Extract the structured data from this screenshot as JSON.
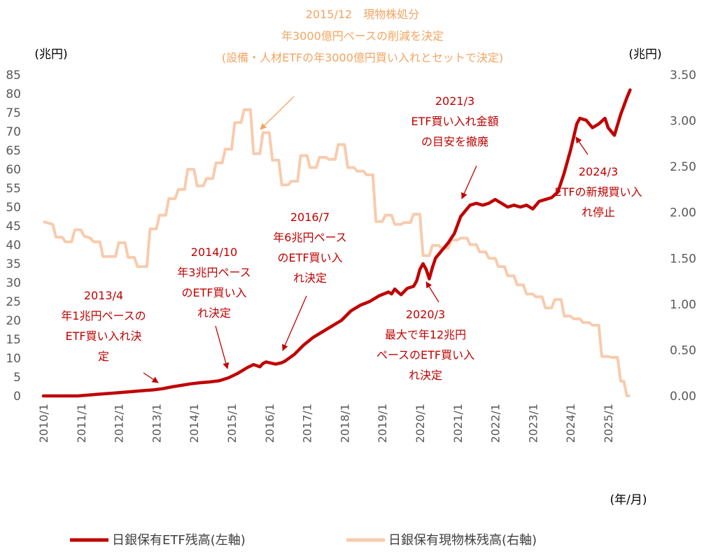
{
  "chart_data": {
    "type": "line",
    "title": "",
    "left_unit": "(兆円)",
    "right_unit": "(兆円)",
    "x_unit": "(年/月)",
    "x_ticks": [
      "2010/1",
      "2011/1",
      "2012/1",
      "2013/1",
      "2014/1",
      "2015/1",
      "2016/1",
      "2017/1",
      "2018/1",
      "2019/1",
      "2020/1",
      "2021/1",
      "2022/1",
      "2023/1",
      "2024/1",
      "2025/1"
    ],
    "y_left_ticks": [
      "0",
      "5",
      "10",
      "15",
      "20",
      "25",
      "30",
      "35",
      "40",
      "45",
      "50",
      "55",
      "60",
      "65",
      "70",
      "75",
      "80",
      "85"
    ],
    "y_right_ticks": [
      "0.00",
      "0.50",
      "1.00",
      "1.50",
      "2.00",
      "2.50",
      "3.00",
      "3.50"
    ],
    "ylim_left": [
      0,
      85
    ],
    "ylim_right": [
      0,
      3.5
    ],
    "grid": false,
    "legend_position": "bottom",
    "colors": {
      "etf": "#C00000",
      "stock": "#F8CBAD",
      "annotation_top": "#F4A460",
      "annotation": "#C00000"
    },
    "series": [
      {
        "name": "日銀保有ETF残高(左軸)",
        "axis": "left",
        "points": [
          [
            "2010-01",
            0
          ],
          [
            "2010-12",
            0
          ],
          [
            "2011-03",
            0.2
          ],
          [
            "2011-06",
            0.4
          ],
          [
            "2011-09",
            0.6
          ],
          [
            "2011-12",
            0.8
          ],
          [
            "2012-03",
            1.0
          ],
          [
            "2012-06",
            1.2
          ],
          [
            "2012-09",
            1.4
          ],
          [
            "2012-12",
            1.6
          ],
          [
            "2013-03",
            1.9
          ],
          [
            "2013-06",
            2.4
          ],
          [
            "2013-09",
            2.8
          ],
          [
            "2013-12",
            3.2
          ],
          [
            "2014-03",
            3.5
          ],
          [
            "2014-06",
            3.7
          ],
          [
            "2014-09",
            4.0
          ],
          [
            "2014-12",
            4.8
          ],
          [
            "2015-03",
            6.0
          ],
          [
            "2015-06",
            7.5
          ],
          [
            "2015-08",
            8.3
          ],
          [
            "2015-09",
            8.0
          ],
          [
            "2015-10",
            7.7
          ],
          [
            "2015-11",
            8.6
          ],
          [
            "2015-12",
            9.0
          ],
          [
            "2016-01",
            8.8
          ],
          [
            "2016-03",
            8.4
          ],
          [
            "2016-05",
            8.8
          ],
          [
            "2016-06",
            9.2
          ],
          [
            "2016-07",
            9.8
          ],
          [
            "2016-09",
            11.0
          ],
          [
            "2016-12",
            13.5
          ],
          [
            "2017-03",
            15.5
          ],
          [
            "2017-06",
            17.0
          ],
          [
            "2017-09",
            18.5
          ],
          [
            "2017-12",
            20.0
          ],
          [
            "2018-03",
            22.5
          ],
          [
            "2018-06",
            24.0
          ],
          [
            "2018-09",
            25.0
          ],
          [
            "2018-12",
            26.5
          ],
          [
            "2019-03",
            27.5
          ],
          [
            "2019-04",
            27.0
          ],
          [
            "2019-05",
            28.3
          ],
          [
            "2019-06",
            27.5
          ],
          [
            "2019-07",
            26.8
          ],
          [
            "2019-09",
            28.5
          ],
          [
            "2019-11",
            29.0
          ],
          [
            "2019-12",
            30.5
          ],
          [
            "2020-01",
            33.5
          ],
          [
            "2020-02",
            35.0
          ],
          [
            "2020-03",
            33.5
          ],
          [
            "2020-04",
            31.0
          ],
          [
            "2020-05",
            34.0
          ],
          [
            "2020-06",
            36.5
          ],
          [
            "2020-08",
            38.5
          ],
          [
            "2020-10",
            40.5
          ],
          [
            "2020-12",
            43.0
          ],
          [
            "2021-02",
            47.5
          ],
          [
            "2021-03",
            48.5
          ],
          [
            "2021-05",
            50.5
          ],
          [
            "2021-07",
            51.0
          ],
          [
            "2021-09",
            50.5
          ],
          [
            "2021-11",
            51.0
          ],
          [
            "2022-01",
            52.0
          ],
          [
            "2022-03",
            51.0
          ],
          [
            "2022-05",
            50.0
          ],
          [
            "2022-07",
            50.5
          ],
          [
            "2022-09",
            50.0
          ],
          [
            "2022-11",
            50.5
          ],
          [
            "2023-01",
            49.5
          ],
          [
            "2023-03",
            51.5
          ],
          [
            "2023-05",
            52.0
          ],
          [
            "2023-07",
            52.5
          ],
          [
            "2023-09",
            54.0
          ],
          [
            "2023-11",
            59.0
          ],
          [
            "2024-01",
            65.0
          ],
          [
            "2024-03",
            72.0
          ],
          [
            "2024-04",
            73.5
          ],
          [
            "2024-06",
            73.0
          ],
          [
            "2024-08",
            71.0
          ],
          [
            "2024-10",
            72.0
          ],
          [
            "2024-12",
            73.5
          ],
          [
            "2025-01",
            71.0
          ],
          [
            "2025-02",
            70.0
          ],
          [
            "2025-03",
            69.0
          ],
          [
            "2025-05",
            74.5
          ],
          [
            "2025-07",
            79.0
          ],
          [
            "2025-08",
            81.0
          ]
        ]
      },
      {
        "name": "日銀保有現物株残高(右軸)",
        "axis": "right",
        "points": [
          [
            "2010-01",
            1.9
          ],
          [
            "2010-04",
            1.87
          ],
          [
            "2010-05",
            1.73
          ],
          [
            "2010-07",
            1.73
          ],
          [
            "2010-08",
            1.68
          ],
          [
            "2010-10",
            1.68
          ],
          [
            "2010-11",
            1.81
          ],
          [
            "2011-01",
            1.81
          ],
          [
            "2011-02",
            1.74
          ],
          [
            "2011-04",
            1.72
          ],
          [
            "2011-05",
            1.68
          ],
          [
            "2011-07",
            1.68
          ],
          [
            "2011-08",
            1.52
          ],
          [
            "2011-12",
            1.52
          ],
          [
            "2012-01",
            1.67
          ],
          [
            "2012-03",
            1.67
          ],
          [
            "2012-04",
            1.51
          ],
          [
            "2012-06",
            1.51
          ],
          [
            "2012-07",
            1.41
          ],
          [
            "2012-10",
            1.41
          ],
          [
            "2012-11",
            1.82
          ],
          [
            "2013-01",
            1.82
          ],
          [
            "2013-02",
            1.97
          ],
          [
            "2013-04",
            1.97
          ],
          [
            "2013-05",
            2.15
          ],
          [
            "2013-07",
            2.15
          ],
          [
            "2013-08",
            2.25
          ],
          [
            "2013-10",
            2.25
          ],
          [
            "2013-11",
            2.47
          ],
          [
            "2014-01",
            2.47
          ],
          [
            "2014-02",
            2.29
          ],
          [
            "2014-04",
            2.29
          ],
          [
            "2014-05",
            2.37
          ],
          [
            "2014-07",
            2.37
          ],
          [
            "2014-08",
            2.54
          ],
          [
            "2014-10",
            2.54
          ],
          [
            "2014-11",
            2.69
          ],
          [
            "2015-01",
            2.69
          ],
          [
            "2015-02",
            2.98
          ],
          [
            "2015-04",
            2.98
          ],
          [
            "2015-05",
            3.12
          ],
          [
            "2015-07",
            3.12
          ],
          [
            "2015-08",
            2.64
          ],
          [
            "2015-10",
            2.64
          ],
          [
            "2015-11",
            2.87
          ],
          [
            "2016-01",
            2.87
          ],
          [
            "2016-02",
            2.57
          ],
          [
            "2016-04",
            2.57
          ],
          [
            "2016-05",
            2.3
          ],
          [
            "2016-07",
            2.3
          ],
          [
            "2016-08",
            2.34
          ],
          [
            "2016-10",
            2.34
          ],
          [
            "2016-11",
            2.62
          ],
          [
            "2017-01",
            2.62
          ],
          [
            "2017-02",
            2.49
          ],
          [
            "2017-04",
            2.49
          ],
          [
            "2017-05",
            2.6
          ],
          [
            "2017-07",
            2.6
          ],
          [
            "2017-08",
            2.58
          ],
          [
            "2017-10",
            2.58
          ],
          [
            "2017-11",
            2.74
          ],
          [
            "2018-01",
            2.74
          ],
          [
            "2018-02",
            2.49
          ],
          [
            "2018-04",
            2.49
          ],
          [
            "2018-05",
            2.45
          ],
          [
            "2018-07",
            2.45
          ],
          [
            "2018-08",
            2.41
          ],
          [
            "2018-10",
            2.41
          ],
          [
            "2018-11",
            1.9
          ],
          [
            "2019-01",
            1.9
          ],
          [
            "2019-02",
            1.97
          ],
          [
            "2019-04",
            1.97
          ],
          [
            "2019-05",
            1.87
          ],
          [
            "2019-07",
            1.87
          ],
          [
            "2019-08",
            1.89
          ],
          [
            "2019-10",
            1.89
          ],
          [
            "2019-11",
            1.98
          ],
          [
            "2020-01",
            1.98
          ],
          [
            "2020-02",
            1.53
          ],
          [
            "2020-04",
            1.53
          ],
          [
            "2020-05",
            1.64
          ],
          [
            "2020-07",
            1.64
          ],
          [
            "2020-08",
            1.61
          ],
          [
            "2020-10",
            1.61
          ],
          [
            "2020-11",
            1.7
          ],
          [
            "2021-01",
            1.7
          ],
          [
            "2021-02",
            1.72
          ],
          [
            "2021-04",
            1.72
          ],
          [
            "2021-05",
            1.65
          ],
          [
            "2021-07",
            1.65
          ],
          [
            "2021-08",
            1.57
          ],
          [
            "2021-10",
            1.57
          ],
          [
            "2021-11",
            1.5
          ],
          [
            "2022-01",
            1.5
          ],
          [
            "2022-02",
            1.41
          ],
          [
            "2022-04",
            1.41
          ],
          [
            "2022-05",
            1.31
          ],
          [
            "2022-07",
            1.31
          ],
          [
            "2022-08",
            1.21
          ],
          [
            "2022-10",
            1.21
          ],
          [
            "2022-11",
            1.11
          ],
          [
            "2023-01",
            1.11
          ],
          [
            "2023-02",
            1.08
          ],
          [
            "2023-04",
            1.08
          ],
          [
            "2023-05",
            0.96
          ],
          [
            "2023-07",
            0.96
          ],
          [
            "2023-08",
            1.05
          ],
          [
            "2023-10",
            1.05
          ],
          [
            "2023-11",
            0.87
          ],
          [
            "2024-01",
            0.87
          ],
          [
            "2024-02",
            0.84
          ],
          [
            "2024-04",
            0.84
          ],
          [
            "2024-05",
            0.8
          ],
          [
            "2024-07",
            0.8
          ],
          [
            "2024-08",
            0.77
          ],
          [
            "2024-10",
            0.77
          ],
          [
            "2024-11",
            0.43
          ],
          [
            "2025-01",
            0.43
          ],
          [
            "2025-02",
            0.42
          ],
          [
            "2025-04",
            0.42
          ],
          [
            "2025-05",
            0.16
          ],
          [
            "2025-06",
            0.16
          ],
          [
            "2025-07",
            0.0
          ],
          [
            "2025-08",
            0.0
          ]
        ]
      }
    ],
    "annotations": [
      {
        "id": "top",
        "lines": [
          "2015/12　現物株処分",
          "年3000億円ペースの削減を決定",
          "(設備・人材ETFの年3000億円買い入れとセットで決定)"
        ]
      },
      {
        "id": "a2013",
        "lines": [
          "2013/4",
          "年1兆円ペースの",
          "ETF買い入れ決",
          "定"
        ]
      },
      {
        "id": "a2014",
        "lines": [
          "2014/10",
          "年3兆円ペース",
          "のETF買い入",
          "れ決定"
        ]
      },
      {
        "id": "a2016",
        "lines": [
          "2016/7",
          "年6兆円ペース",
          "のETF買い入",
          "れ決定"
        ]
      },
      {
        "id": "a2020",
        "lines": [
          "2020/3",
          "最大で年12兆円",
          "ペースのETF買い入",
          "れ決定"
        ]
      },
      {
        "id": "a2021",
        "lines": [
          "2021/3",
          "ETF買い入れ金額",
          "の目安を撤廃"
        ]
      },
      {
        "id": "a2024",
        "lines": [
          "2024/3",
          "ETFの新規買い入",
          "れ停止"
        ]
      }
    ]
  }
}
